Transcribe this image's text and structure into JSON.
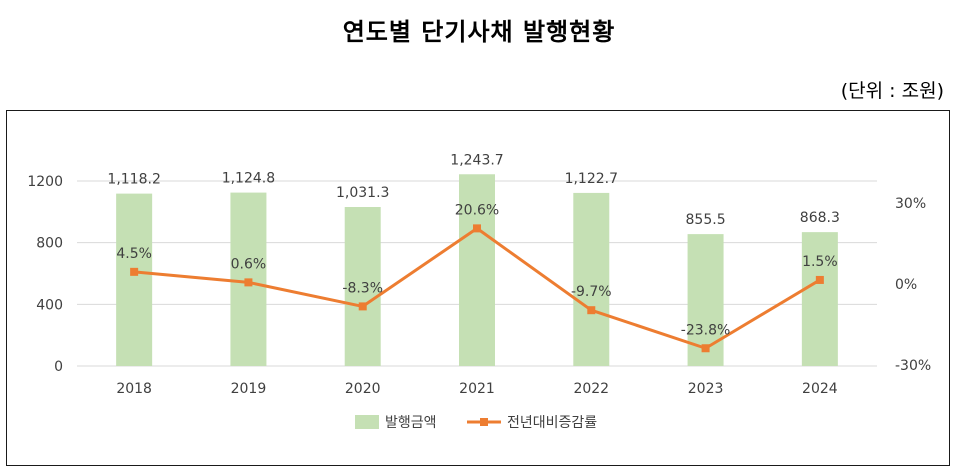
{
  "title": "연도별 단기사채 발행현황",
  "unit_label": "(단위 : 조원)",
  "chart_data": {
    "type": "bar+line",
    "categories": [
      "2018",
      "2019",
      "2020",
      "2021",
      "2022",
      "2023",
      "2024"
    ],
    "series": [
      {
        "name": "발행금액",
        "type": "bar",
        "axis": "left",
        "color": "#c5e0b4",
        "values": [
          1118.2,
          1124.8,
          1031.3,
          1243.7,
          1122.7,
          855.5,
          868.3
        ],
        "labels": [
          "1,118.2",
          "1,124.8",
          "1,031.3",
          "1,243.7",
          "1,122.7",
          "855.5",
          "868.3"
        ]
      },
      {
        "name": "전년대비증감률",
        "type": "line",
        "axis": "right",
        "color": "#ed7d31",
        "values": [
          4.5,
          0.6,
          -8.3,
          20.6,
          -9.7,
          -23.8,
          1.5
        ],
        "labels": [
          "4.5%",
          "0.6%",
          "-8.3%",
          "20.6%",
          "-9.7%",
          "-23.8%",
          "1.5%"
        ]
      }
    ],
    "y_left": {
      "min": 0,
      "max": 1200,
      "ticks": [
        0,
        400,
        800,
        1200
      ],
      "tick_labels": [
        "0",
        "400",
        "800",
        "1200"
      ]
    },
    "y_right": {
      "min": -30,
      "max": 30,
      "ticks": [
        -30,
        0,
        30
      ],
      "tick_labels": [
        "-30%",
        "0%",
        "30%"
      ]
    },
    "grid": true,
    "legend": "bottom-center"
  }
}
